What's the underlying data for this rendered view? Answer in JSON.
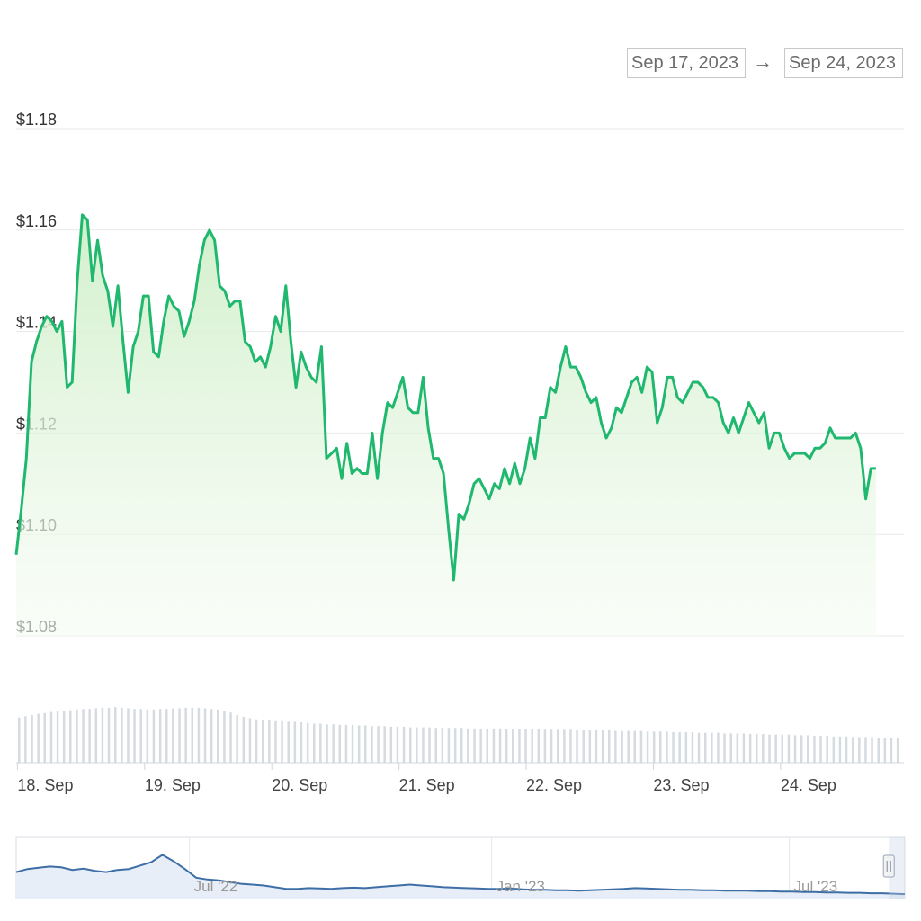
{
  "range_selector": {
    "from": "Sep 17, 2023",
    "arrow": "→",
    "to": "Sep 24, 2023"
  },
  "colors": {
    "price_line": "#1fb86e",
    "price_fill_top": "#cdeec6",
    "price_fill_bottom": "#f6fcf4",
    "grid": "#e9e9e9",
    "volume_bar": "#d6dbe0",
    "navigator_line": "#3d6ea6",
    "navigator_fill": "#e7eef7",
    "navigator_handle": "#c5d0e4"
  },
  "chart_data": [
    {
      "type": "area",
      "name": "price",
      "y_ticks": [
        "$1.18",
        "$1.16",
        "$1.14",
        "$1.12",
        "$1.10",
        "$1.08"
      ],
      "ylim": [
        1.08,
        1.18
      ],
      "x_ticks": [
        "18. Sep",
        "19. Sep",
        "20. Sep",
        "21. Sep",
        "22. Sep",
        "23. Sep",
        "24. Sep"
      ],
      "x_tick_values": [
        18,
        19,
        20,
        21,
        22,
        23,
        24
      ],
      "xlim": [
        17.99,
        24.97
      ],
      "grid": true,
      "points": [
        [
          17.99,
          1.096
        ],
        [
          18.03,
          1.105
        ],
        [
          18.07,
          1.115
        ],
        [
          18.11,
          1.134
        ],
        [
          18.15,
          1.138
        ],
        [
          18.19,
          1.141
        ],
        [
          18.23,
          1.143
        ],
        [
          18.27,
          1.142
        ],
        [
          18.31,
          1.14
        ],
        [
          18.35,
          1.142
        ],
        [
          18.39,
          1.129
        ],
        [
          18.43,
          1.13
        ],
        [
          18.47,
          1.15
        ],
        [
          18.51,
          1.163
        ],
        [
          18.55,
          1.162
        ],
        [
          18.59,
          1.15
        ],
        [
          18.63,
          1.158
        ],
        [
          18.67,
          1.151
        ],
        [
          18.71,
          1.148
        ],
        [
          18.75,
          1.141
        ],
        [
          18.79,
          1.149
        ],
        [
          18.83,
          1.138
        ],
        [
          18.87,
          1.128
        ],
        [
          18.91,
          1.137
        ],
        [
          18.95,
          1.14
        ],
        [
          18.99,
          1.147
        ],
        [
          19.03,
          1.147
        ],
        [
          19.07,
          1.136
        ],
        [
          19.11,
          1.135
        ],
        [
          19.15,
          1.142
        ],
        [
          19.19,
          1.147
        ],
        [
          19.23,
          1.145
        ],
        [
          19.27,
          1.144
        ],
        [
          19.31,
          1.139
        ],
        [
          19.35,
          1.142
        ],
        [
          19.39,
          1.146
        ],
        [
          19.43,
          1.153
        ],
        [
          19.47,
          1.158
        ],
        [
          19.51,
          1.16
        ],
        [
          19.55,
          1.158
        ],
        [
          19.59,
          1.149
        ],
        [
          19.63,
          1.148
        ],
        [
          19.67,
          1.145
        ],
        [
          19.71,
          1.146
        ],
        [
          19.75,
          1.146
        ],
        [
          19.79,
          1.138
        ],
        [
          19.83,
          1.137
        ],
        [
          19.87,
          1.134
        ],
        [
          19.91,
          1.135
        ],
        [
          19.95,
          1.133
        ],
        [
          19.99,
          1.137
        ],
        [
          20.03,
          1.143
        ],
        [
          20.07,
          1.14
        ],
        [
          20.11,
          1.149
        ],
        [
          20.15,
          1.138
        ],
        [
          20.19,
          1.129
        ],
        [
          20.23,
          1.136
        ],
        [
          20.27,
          1.133
        ],
        [
          20.31,
          1.131
        ],
        [
          20.35,
          1.13
        ],
        [
          20.39,
          1.137
        ],
        [
          20.43,
          1.115
        ],
        [
          20.47,
          1.116
        ],
        [
          20.51,
          1.117
        ],
        [
          20.55,
          1.111
        ],
        [
          20.59,
          1.118
        ],
        [
          20.63,
          1.112
        ],
        [
          20.67,
          1.113
        ],
        [
          20.71,
          1.112
        ],
        [
          20.75,
          1.112
        ],
        [
          20.79,
          1.12
        ],
        [
          20.83,
          1.111
        ],
        [
          20.87,
          1.12
        ],
        [
          20.91,
          1.126
        ],
        [
          20.95,
          1.125
        ],
        [
          20.99,
          1.128
        ],
        [
          21.03,
          1.131
        ],
        [
          21.07,
          1.125
        ],
        [
          21.11,
          1.124
        ],
        [
          21.15,
          1.124
        ],
        [
          21.19,
          1.131
        ],
        [
          21.23,
          1.121
        ],
        [
          21.27,
          1.115
        ],
        [
          21.31,
          1.115
        ],
        [
          21.35,
          1.112
        ],
        [
          21.39,
          1.101
        ],
        [
          21.43,
          1.091
        ],
        [
          21.47,
          1.104
        ],
        [
          21.51,
          1.103
        ],
        [
          21.55,
          1.106
        ],
        [
          21.59,
          1.11
        ],
        [
          21.63,
          1.111
        ],
        [
          21.67,
          1.109
        ],
        [
          21.71,
          1.107
        ],
        [
          21.75,
          1.11
        ],
        [
          21.79,
          1.109
        ],
        [
          21.83,
          1.113
        ],
        [
          21.87,
          1.11
        ],
        [
          21.91,
          1.114
        ],
        [
          21.95,
          1.11
        ],
        [
          21.99,
          1.113
        ],
        [
          22.03,
          1.119
        ],
        [
          22.07,
          1.115
        ],
        [
          22.11,
          1.123
        ],
        [
          22.15,
          1.123
        ],
        [
          22.19,
          1.129
        ],
        [
          22.23,
          1.128
        ],
        [
          22.27,
          1.133
        ],
        [
          22.31,
          1.137
        ],
        [
          22.35,
          1.133
        ],
        [
          22.39,
          1.133
        ],
        [
          22.43,
          1.131
        ],
        [
          22.47,
          1.128
        ],
        [
          22.51,
          1.126
        ],
        [
          22.55,
          1.127
        ],
        [
          22.59,
          1.122
        ],
        [
          22.63,
          1.119
        ],
        [
          22.67,
          1.121
        ],
        [
          22.71,
          1.125
        ],
        [
          22.75,
          1.124
        ],
        [
          22.79,
          1.127
        ],
        [
          22.83,
          1.13
        ],
        [
          22.87,
          1.131
        ],
        [
          22.91,
          1.128
        ],
        [
          22.95,
          1.133
        ],
        [
          22.99,
          1.132
        ],
        [
          23.03,
          1.122
        ],
        [
          23.07,
          1.125
        ],
        [
          23.11,
          1.131
        ],
        [
          23.15,
          1.131
        ],
        [
          23.19,
          1.127
        ],
        [
          23.23,
          1.126
        ],
        [
          23.27,
          1.128
        ],
        [
          23.31,
          1.13
        ],
        [
          23.35,
          1.13
        ],
        [
          23.39,
          1.129
        ],
        [
          23.43,
          1.127
        ],
        [
          23.47,
          1.127
        ],
        [
          23.51,
          1.126
        ],
        [
          23.55,
          1.122
        ],
        [
          23.59,
          1.12
        ],
        [
          23.63,
          1.123
        ],
        [
          23.67,
          1.12
        ],
        [
          23.71,
          1.123
        ],
        [
          23.75,
          1.126
        ],
        [
          23.79,
          1.124
        ],
        [
          23.83,
          1.122
        ],
        [
          23.87,
          1.124
        ],
        [
          23.91,
          1.117
        ],
        [
          23.95,
          1.12
        ],
        [
          23.99,
          1.12
        ],
        [
          24.03,
          1.117
        ],
        [
          24.07,
          1.115
        ],
        [
          24.11,
          1.116
        ],
        [
          24.15,
          1.116
        ],
        [
          24.19,
          1.116
        ],
        [
          24.23,
          1.115
        ],
        [
          24.27,
          1.117
        ],
        [
          24.31,
          1.117
        ],
        [
          24.35,
          1.118
        ],
        [
          24.39,
          1.121
        ],
        [
          24.43,
          1.119
        ],
        [
          24.47,
          1.119
        ],
        [
          24.51,
          1.119
        ],
        [
          24.55,
          1.119
        ],
        [
          24.59,
          1.12
        ],
        [
          24.63,
          1.117
        ],
        [
          24.67,
          1.107
        ],
        [
          24.71,
          1.113
        ],
        [
          24.75,
          1.113
        ]
      ]
    },
    {
      "type": "bar",
      "name": "volume",
      "bars": 138,
      "relative_heights": [
        0.74,
        0.76,
        0.78,
        0.8,
        0.81,
        0.83,
        0.84,
        0.85,
        0.86,
        0.87,
        0.88,
        0.88,
        0.89,
        0.9,
        0.9,
        0.91,
        0.9,
        0.89,
        0.88,
        0.88,
        0.87,
        0.87,
        0.88,
        0.88,
        0.89,
        0.89,
        0.9,
        0.9,
        0.9,
        0.89,
        0.88,
        0.87,
        0.85,
        0.82,
        0.78,
        0.75,
        0.73,
        0.71,
        0.7,
        0.69,
        0.68,
        0.68,
        0.67,
        0.67,
        0.66,
        0.65,
        0.64,
        0.64,
        0.63,
        0.63,
        0.62,
        0.62,
        0.62,
        0.61,
        0.61,
        0.6,
        0.6,
        0.6,
        0.59,
        0.59,
        0.59,
        0.58,
        0.58,
        0.58,
        0.58,
        0.57,
        0.57,
        0.57,
        0.57,
        0.57,
        0.56,
        0.56,
        0.56,
        0.56,
        0.56,
        0.56,
        0.55,
        0.55,
        0.55,
        0.55,
        0.55,
        0.55,
        0.54,
        0.54,
        0.54,
        0.54,
        0.54,
        0.53,
        0.53,
        0.53,
        0.53,
        0.53,
        0.53,
        0.52,
        0.52,
        0.52,
        0.52,
        0.52,
        0.51,
        0.51,
        0.51,
        0.51,
        0.5,
        0.5,
        0.5,
        0.5,
        0.49,
        0.49,
        0.49,
        0.49,
        0.48,
        0.48,
        0.48,
        0.48,
        0.47,
        0.47,
        0.47,
        0.46,
        0.46,
        0.46,
        0.46,
        0.45,
        0.45,
        0.45,
        0.44,
        0.44,
        0.44,
        0.43,
        0.43,
        0.43,
        0.42,
        0.42,
        0.42,
        0.42,
        0.41,
        0.41,
        0.41,
        0.41
      ]
    },
    {
      "type": "line",
      "name": "navigator",
      "x_ticks": [
        "Jul '22",
        "Jan '23",
        "Jul '23"
      ],
      "x_tick_positions": [
        0.195,
        0.535,
        0.87
      ],
      "selected_range_fraction": [
        0.982,
        1.0
      ],
      "relative_values": [
        0.55,
        0.62,
        0.65,
        0.68,
        0.66,
        0.6,
        0.63,
        0.58,
        0.55,
        0.6,
        0.62,
        0.7,
        0.78,
        0.95,
        0.8,
        0.62,
        0.42,
        0.38,
        0.36,
        0.32,
        0.28,
        0.26,
        0.24,
        0.2,
        0.16,
        0.16,
        0.18,
        0.17,
        0.16,
        0.18,
        0.19,
        0.18,
        0.2,
        0.22,
        0.24,
        0.26,
        0.24,
        0.22,
        0.2,
        0.19,
        0.18,
        0.17,
        0.16,
        0.16,
        0.17,
        0.15,
        0.14,
        0.14,
        0.13,
        0.13,
        0.12,
        0.13,
        0.14,
        0.15,
        0.16,
        0.18,
        0.17,
        0.16,
        0.15,
        0.14,
        0.14,
        0.13,
        0.13,
        0.12,
        0.12,
        0.12,
        0.11,
        0.11,
        0.1,
        0.1,
        0.09,
        0.09,
        0.08,
        0.08,
        0.07,
        0.07,
        0.06,
        0.06,
        0.05,
        0.04
      ]
    }
  ]
}
